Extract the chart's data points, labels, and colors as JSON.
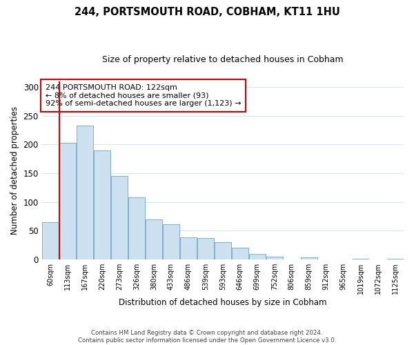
{
  "title": "244, PORTSMOUTH ROAD, COBHAM, KT11 1HU",
  "subtitle": "Size of property relative to detached houses in Cobham",
  "xlabel": "Distribution of detached houses by size in Cobham",
  "ylabel": "Number of detached properties",
  "bar_labels": [
    "60sqm",
    "113sqm",
    "167sqm",
    "220sqm",
    "273sqm",
    "326sqm",
    "380sqm",
    "433sqm",
    "486sqm",
    "539sqm",
    "593sqm",
    "646sqm",
    "699sqm",
    "752sqm",
    "806sqm",
    "859sqm",
    "912sqm",
    "965sqm",
    "1019sqm",
    "1072sqm",
    "1125sqm"
  ],
  "bar_values": [
    65,
    203,
    233,
    190,
    145,
    108,
    70,
    61,
    39,
    37,
    30,
    20,
    10,
    5,
    0,
    4,
    0,
    0,
    1,
    0,
    1
  ],
  "bar_color": "#cce0f0",
  "bar_edge_color": "#7ab0cc",
  "vline_color": "#cc0000",
  "annotation_text": "244 PORTSMOUTH ROAD: 122sqm\n← 8% of detached houses are smaller (93)\n92% of semi-detached houses are larger (1,123) →",
  "annotation_box_color": "#ffffff",
  "annotation_box_edge": "#cc0000",
  "ylim": [
    0,
    310
  ],
  "yticks": [
    0,
    50,
    100,
    150,
    200,
    250,
    300
  ],
  "footer1": "Contains HM Land Registry data © Crown copyright and database right 2024.",
  "footer2": "Contains public sector information licensed under the Open Government Licence v3.0.",
  "bg_color": "#ffffff",
  "grid_color": "#d4e4f0"
}
